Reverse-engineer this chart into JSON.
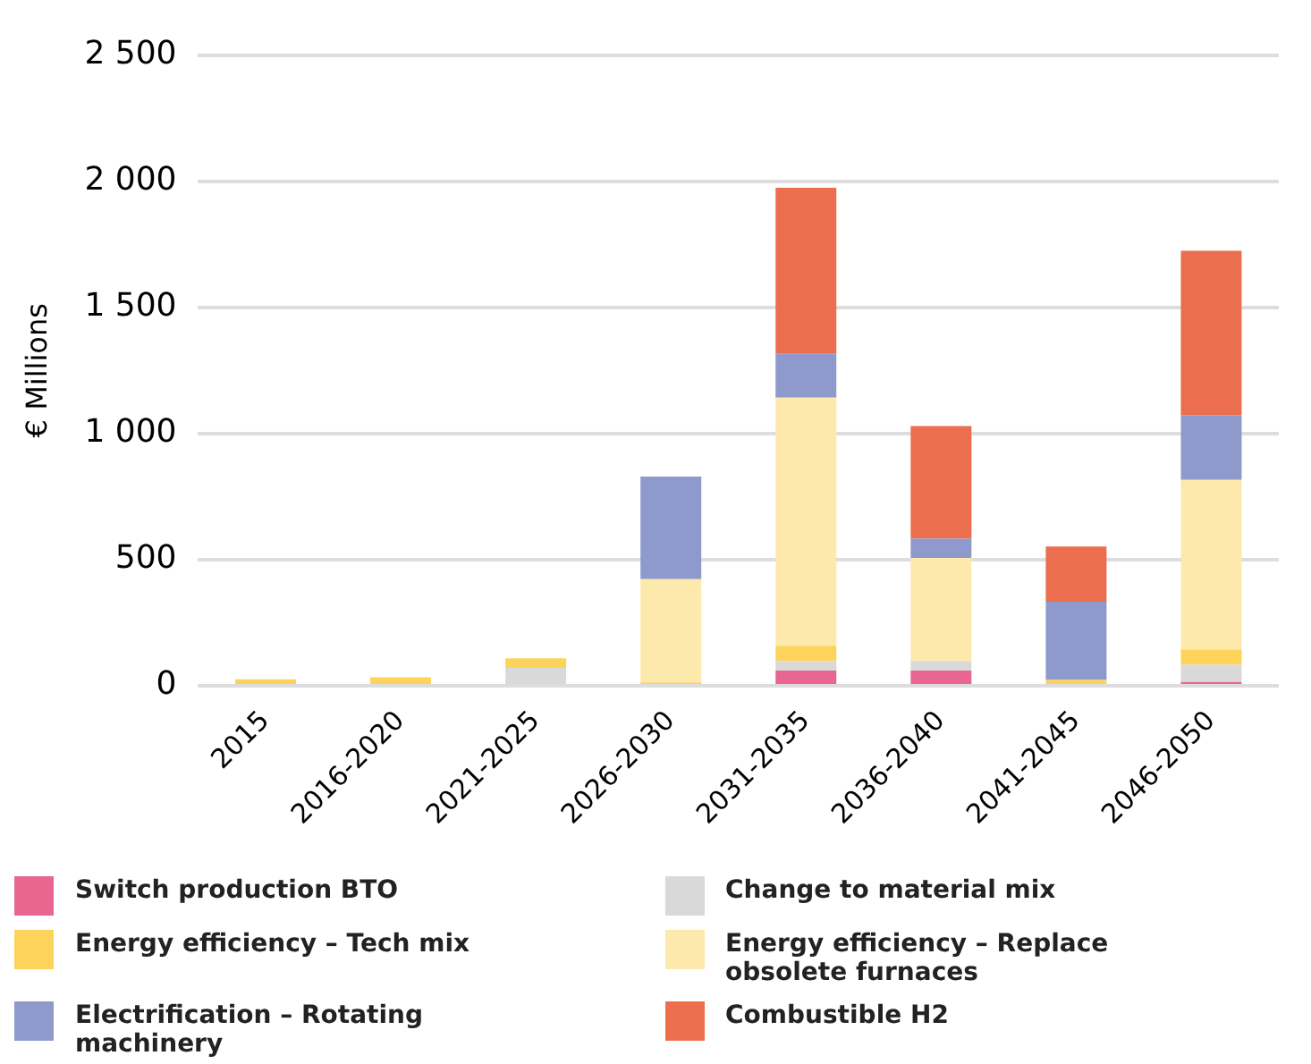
{
  "chart_data": {
    "type": "bar",
    "stacked": true,
    "ylabel": "€ Millions",
    "categories": [
      "2015",
      "2016-2020",
      "2021-2025",
      "2026-2030",
      "2031-2035",
      "2036-2040",
      "2041-2045",
      "2046-2050"
    ],
    "series": [
      {
        "name": "Switch production BTO",
        "color": "#e8668f",
        "values": [
          null,
          null,
          null,
          null,
          60,
          60,
          null,
          15
        ]
      },
      {
        "name": "Change to material mix",
        "color": "#d9d9d9",
        "values": [
          null,
          null,
          71,
          null,
          38,
          38,
          null,
          68
        ]
      },
      {
        "name": "Energy efficiency – Tech mix",
        "color": "#fdd35b",
        "values": [
          25,
          33,
          38,
          13,
          60,
          null,
          23,
          60
        ]
      },
      {
        "name": "Energy efficiency – Replace obsolete furnaces",
        "color": "#fee9ad",
        "values": [
          null,
          null,
          null,
          409,
          984,
          409,
          null,
          673
        ]
      },
      {
        "name": "Electrification – Rotating machinery",
        "color": "#8f9acc",
        "values": [
          null,
          null,
          null,
          407,
          174,
          76,
          310,
          257
        ]
      },
      {
        "name": "Combustible H2",
        "color": "#eb6e4f",
        "values": [
          null,
          null,
          null,
          null,
          658,
          446,
          219,
          651
        ]
      }
    ],
    "ylim": [
      0,
      2500
    ],
    "yticks": [
      0,
      500,
      {
        "value": 1000,
        "label": "1 000"
      },
      {
        "value": 1500,
        "label": "1 500"
      },
      {
        "value": 2000,
        "label": "2 000"
      },
      {
        "value": 2500,
        "label": "2 500"
      }
    ],
    "grid": "y",
    "legend": "bottom"
  }
}
